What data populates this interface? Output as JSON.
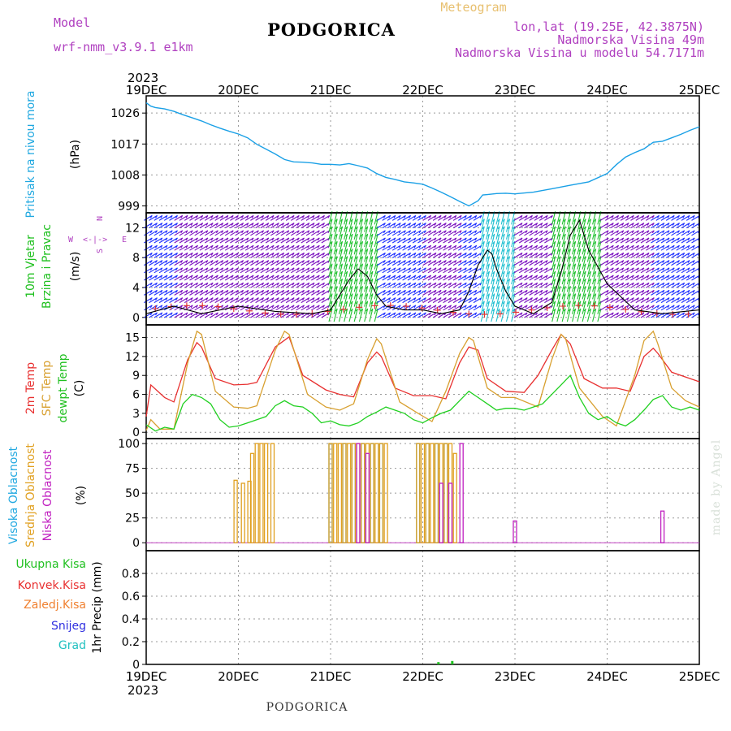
{
  "header": {
    "model_label": "Model",
    "model_name": "wrf-nmm_v3.9.1 e1km",
    "station": "PODGORICA",
    "product": "Meteogram",
    "coords": "lon,lat (19.25E, 42.3875N)",
    "altitude": "Nadmorska Visina 49m",
    "model_altitude": "Nadmorska Visina u modelu 54.7171m"
  },
  "footer": {
    "station": "PODGORICA",
    "credit": "made by Angel"
  },
  "x_axis": {
    "year": "2023",
    "ticks": [
      "19DEC",
      "20DEC",
      "21DEC",
      "22DEC",
      "23DEC",
      "24DEC",
      "25DEC"
    ],
    "range_days": [
      0,
      6
    ]
  },
  "colors": {
    "pressure": "#1aa0e6",
    "wind_wide": "#7a10c0",
    "wind_blue": "#2030ff",
    "wind_green": "#20c030",
    "wind_cyan": "#20c0d0",
    "temp2m": "#e83030",
    "sfctemp": "#d8a030",
    "dewpt": "#20d020",
    "cloud_high": "#20a8e0",
    "cloud_mid": "#e0a020",
    "cloud_low": "#c020c0",
    "precip": "#20c020",
    "axis_label_purple": "#b040c0",
    "axis_label_green": "#20c020",
    "axis_label_blue": "#20a8e0",
    "credit": "#d8e0d8"
  },
  "panels": {
    "pressure": {
      "ylabel_main": "Pritisak na nivou mora",
      "unit": "(hPa)",
      "yticks": [
        "1026",
        "1017",
        "1008",
        "999"
      ]
    },
    "wind": {
      "ylabel_1": "10m Vjetar",
      "ylabel_2": "Brzina i Pravac",
      "unit": "(m/s)",
      "yticks": [
        "12",
        "8",
        "4",
        "0"
      ],
      "compass": {
        "n": "N",
        "e": "E",
        "s": "S",
        "w": "W",
        "arrows": "<-|->"
      }
    },
    "temp": {
      "label_2m": "2m Temp",
      "label_sfc": "SFC Temp",
      "label_dew": "dewpt Temp",
      "unit": "(C)",
      "yticks": [
        "15",
        "12",
        "9",
        "6",
        "3",
        "0"
      ]
    },
    "cloud": {
      "label_high": "Visoka Oblacnost",
      "label_mid": "Srednja Oblacnost",
      "label_low": "Niska Oblacnost",
      "unit": "(%)",
      "yticks": [
        "100",
        "75",
        "50",
        "25",
        "0"
      ]
    },
    "precip": {
      "unit": "1hr Precip (mm)",
      "yticks": [
        "0.8",
        "0.6",
        "0.4",
        "0.2",
        "0"
      ],
      "legend": [
        "Ukupna Kisa",
        "Konvek.Kisa",
        "Zaledj.Kisa",
        "Snijeg",
        "Grad"
      ]
    }
  },
  "chart_data": [
    {
      "type": "line",
      "title": "Pritisak na nivou mora",
      "ylabel": "(hPa)",
      "xlabel": "",
      "ylim": [
        997,
        1031
      ],
      "grid": true,
      "series": [
        {
          "x": [
            0,
            0.05,
            0.1,
            0.2,
            0.3,
            0.4,
            0.5,
            0.6,
            0.7,
            0.8,
            0.9,
            1.0,
            1.1,
            1.2,
            1.3,
            1.4,
            1.5,
            1.6,
            1.7,
            1.8,
            1.9,
            2.0,
            2.1,
            2.2,
            2.3,
            2.4,
            2.5,
            2.6,
            2.7,
            2.8,
            2.9,
            3.0,
            3.1,
            3.2,
            3.3,
            3.4,
            3.5,
            3.6,
            3.65,
            3.7,
            3.8,
            3.9,
            4.0,
            4.2,
            4.4,
            4.6,
            4.8,
            5.0,
            5.1,
            5.2,
            5.3,
            5.4,
            5.5,
            5.6,
            5.7,
            5.8,
            5.9,
            6.0
          ],
          "values": [
            1029,
            1028,
            1027.6,
            1027.2,
            1026.5,
            1025.5,
            1024.6,
            1023.7,
            1022.6,
            1021.6,
            1020.7,
            1019.9,
            1018.8,
            1016.9,
            1015.5,
            1014.1,
            1012.5,
            1011.8,
            1011.7,
            1011.5,
            1011.1,
            1011.1,
            1010.9,
            1011.3,
            1010.7,
            1010,
            1008.4,
            1007.3,
            1006.7,
            1006,
            1005.7,
            1005.3,
            1004.2,
            1003,
            1001.7,
            1000.3,
            999,
            1000.5,
            1002.2,
            1002.3,
            1002.6,
            1002.7,
            1002.5,
            1003,
            1004,
            1005,
            1006,
            1008.4,
            1011,
            1013.2,
            1014.5,
            1015.6,
            1017.5,
            1017.8,
            1018.8,
            1019.8,
            1021,
            1022
          ]
        }
      ]
    },
    {
      "type": "line",
      "title": "10m Vjetar Brzina i Pravac",
      "ylabel": "(m/s)",
      "xlabel": "",
      "ylim": [
        -1,
        14
      ],
      "grid": true,
      "series": [
        {
          "x": [
            0,
            0.3,
            0.6,
            1.0,
            1.4,
            1.8,
            2.0,
            2.1,
            2.2,
            2.3,
            2.4,
            2.5,
            2.6,
            2.8,
            3.0,
            3.2,
            3.4,
            3.5,
            3.6,
            3.7,
            3.75,
            3.8,
            3.9,
            4.0,
            4.2,
            4.4,
            4.5,
            4.6,
            4.7,
            4.8,
            5.0,
            5.3,
            5.6,
            6.0
          ],
          "values": [
            0.5,
            1.5,
            0.5,
            1.5,
            0.8,
            0.5,
            1.0,
            3.0,
            5.0,
            6.5,
            5.5,
            3.0,
            1.5,
            1.0,
            1.0,
            0.5,
            1.0,
            3.5,
            7.0,
            9.0,
            8.5,
            6.5,
            3.5,
            1.5,
            0.5,
            2.0,
            6.0,
            11.0,
            13.0,
            9.0,
            4.5,
            1.0,
            0.5,
            1.0
          ]
        }
      ]
    },
    {
      "type": "line",
      "title": "2m Temp / SFC Temp / dewpt Temp",
      "ylabel": "(C)",
      "xlabel": "",
      "ylim": [
        -1,
        17
      ],
      "grid": true,
      "series": [
        {
          "name": "2m Temp",
          "x": [
            0,
            0.05,
            0.2,
            0.3,
            0.45,
            0.55,
            0.6,
            0.75,
            0.95,
            1.1,
            1.2,
            1.4,
            1.55,
            1.7,
            1.95,
            2.1,
            2.25,
            2.4,
            2.5,
            2.55,
            2.7,
            2.9,
            3.1,
            3.25,
            3.4,
            3.5,
            3.6,
            3.7,
            3.9,
            4.1,
            4.25,
            4.4,
            4.5,
            4.6,
            4.75,
            4.95,
            5.1,
            5.25,
            5.4,
            5.5,
            5.55,
            5.7,
            5.9,
            6.0
          ],
          "values": [
            2.5,
            7.5,
            5.5,
            4.8,
            11.5,
            14.2,
            13.5,
            8.5,
            7.5,
            7.6,
            7.9,
            13.5,
            15.1,
            9.0,
            6.7,
            6.0,
            5.6,
            11.0,
            12.7,
            12.0,
            7.0,
            5.8,
            5.8,
            5.3,
            11.0,
            13.5,
            13.0,
            8.5,
            6.5,
            6.3,
            9.0,
            13.0,
            15.5,
            14.0,
            8.5,
            7.0,
            7.0,
            6.5,
            12.0,
            13.3,
            12.5,
            9.5,
            8.5,
            8.0
          ]
        },
        {
          "name": "SFC Temp",
          "x": [
            0,
            0.05,
            0.15,
            0.3,
            0.45,
            0.55,
            0.6,
            0.75,
            0.95,
            1.1,
            1.2,
            1.4,
            1.5,
            1.55,
            1.75,
            1.95,
            2.1,
            2.25,
            2.4,
            2.5,
            2.55,
            2.75,
            2.95,
            3.1,
            3.25,
            3.4,
            3.5,
            3.55,
            3.7,
            3.85,
            4.0,
            4.25,
            4.4,
            4.5,
            4.55,
            4.7,
            4.95,
            5.1,
            5.3,
            5.4,
            5.5,
            5.55,
            5.7,
            5.85,
            6.0
          ],
          "values": [
            0.3,
            2.0,
            0.5,
            0.5,
            11.0,
            16.0,
            15.5,
            6.5,
            4.0,
            3.8,
            4.2,
            13.0,
            16.0,
            15.5,
            6.0,
            4.0,
            3.5,
            4.5,
            11.5,
            14.8,
            14.0,
            4.8,
            3.0,
            1.7,
            6.5,
            12.5,
            15.0,
            14.5,
            7.0,
            5.5,
            5.5,
            4.0,
            11.5,
            15.5,
            14.8,
            7.0,
            2.5,
            1.0,
            9.0,
            14.5,
            16.0,
            14.0,
            7.0,
            5.0,
            4.0
          ]
        },
        {
          "name": "dewpt Temp",
          "x": [
            0,
            0.1,
            0.2,
            0.3,
            0.4,
            0.5,
            0.6,
            0.7,
            0.8,
            0.9,
            1.0,
            1.1,
            1.2,
            1.3,
            1.4,
            1.5,
            1.6,
            1.7,
            1.8,
            1.9,
            2.0,
            2.1,
            2.2,
            2.3,
            2.4,
            2.5,
            2.6,
            2.7,
            2.8,
            2.9,
            3.0,
            3.1,
            3.2,
            3.3,
            3.4,
            3.5,
            3.6,
            3.7,
            3.8,
            3.9,
            4.0,
            4.1,
            4.2,
            4.3,
            4.4,
            4.5,
            4.6,
            4.7,
            4.8,
            4.9,
            5.0,
            5.1,
            5.2,
            5.3,
            5.4,
            5.5,
            5.6,
            5.7,
            5.8,
            5.9,
            6.0
          ],
          "values": [
            1.2,
            0.2,
            0.8,
            0.5,
            4.5,
            6.0,
            5.5,
            4.5,
            2.0,
            0.8,
            1.0,
            1.5,
            2.0,
            2.5,
            4.2,
            5.0,
            4.2,
            4.0,
            3.0,
            1.5,
            1.8,
            1.2,
            1.0,
            1.5,
            2.5,
            3.2,
            4.0,
            3.5,
            3.0,
            2.0,
            1.5,
            2.3,
            3.0,
            3.5,
            5.0,
            6.5,
            5.5,
            4.5,
            3.5,
            3.8,
            3.8,
            3.5,
            4.0,
            4.5,
            6.0,
            7.5,
            9.0,
            5.5,
            3.0,
            2.0,
            2.5,
            1.5,
            1.0,
            2.0,
            3.5,
            5.2,
            5.8,
            4.0,
            3.5,
            4.0,
            3.5
          ]
        }
      ]
    },
    {
      "type": "bar",
      "title": "Visoka / Srednja / Niska Oblacnost",
      "ylabel": "(%)",
      "xlabel": "",
      "ylim": [
        -8,
        105
      ],
      "grid": true,
      "series": [
        {
          "name": "Visoka Oblacnost",
          "x": [
            2.0,
            2.15,
            2.25,
            2.35,
            2.45,
            2.55,
            2.95,
            3.05,
            3.15,
            3.25
          ],
          "values": [
            100,
            100,
            100,
            100,
            100,
            100,
            100,
            100,
            100,
            100
          ]
        },
        {
          "name": "Srednja Oblacnost",
          "x": [
            0.97,
            1.05,
            1.12,
            1.15,
            1.2,
            1.25,
            1.3,
            1.37,
            2.0,
            2.05,
            2.1,
            2.15,
            2.2,
            2.25,
            2.3,
            2.35,
            2.4,
            2.45,
            2.5,
            2.55,
            2.6,
            2.95,
            3.0,
            3.05,
            3.1,
            3.15,
            3.2,
            3.25,
            3.3,
            3.35
          ],
          "values": [
            63,
            60,
            62,
            90,
            100,
            100,
            100,
            100,
            100,
            100,
            100,
            100,
            100,
            100,
            100,
            100,
            100,
            100,
            100,
            100,
            100,
            100,
            100,
            100,
            100,
            100,
            100,
            100,
            100,
            90
          ]
        },
        {
          "name": "Niska Oblacnost",
          "x": [
            2.3,
            2.4,
            3.2,
            3.3,
            3.42,
            4.0,
            5.6
          ],
          "values": [
            100,
            90,
            60,
            60,
            100,
            22,
            32
          ]
        }
      ]
    },
    {
      "type": "bar",
      "title": "1hr Precip",
      "ylabel": "1hr Precip (mm)",
      "xlabel": "",
      "ylim": [
        0,
        1.0
      ],
      "grid": true,
      "series": [
        {
          "name": "Ukupna Kisa",
          "x": [
            3.17,
            3.32
          ],
          "values": [
            0.02,
            0.03
          ]
        }
      ]
    }
  ]
}
